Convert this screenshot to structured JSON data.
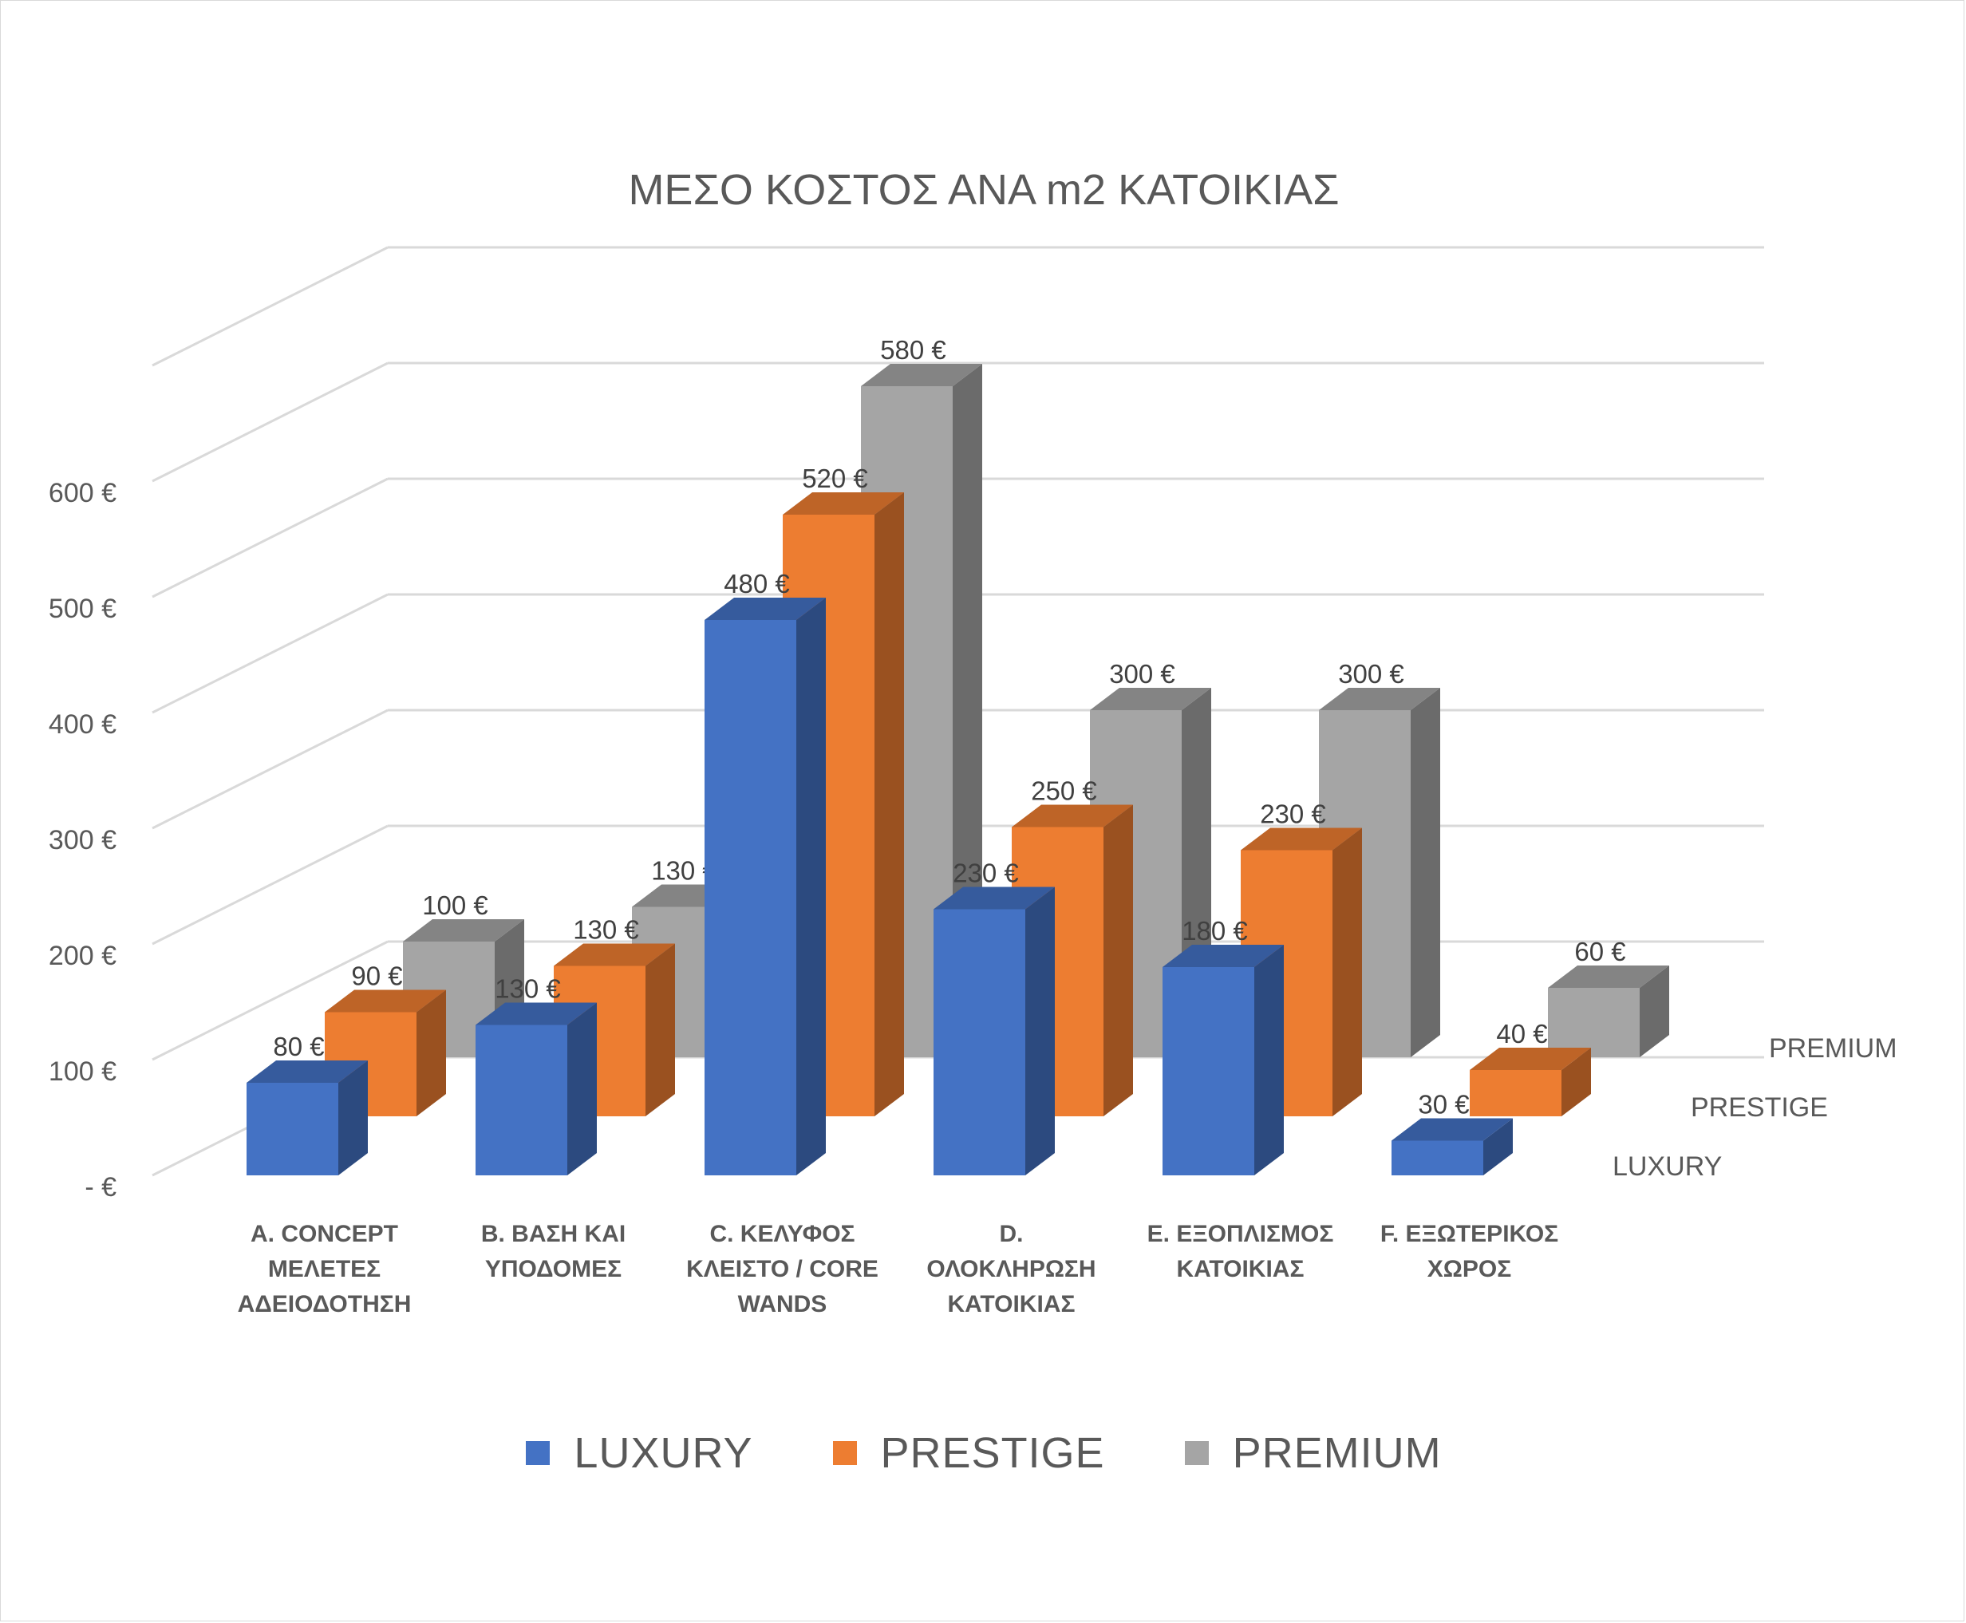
{
  "chart_data": {
    "type": "bar",
    "subtype": "3d-clustered-column",
    "title": "ΜΕΣΟ ΚΟΣΤΟΣ ΑΝΑ m2 ΚΑΤΟΙΚΙΑΣ",
    "categories": [
      [
        "A.  CONCEPT",
        "ΜΕΛΕΤΕΣ",
        "ΑΔΕΙΟΔΟΤΗΣΗ"
      ],
      [
        "B.  ΒΑΣΗ ΚΑΙ",
        "ΥΠΟΔΟΜΕΣ"
      ],
      [
        "C.  ΚΕΛΥΦΟΣ",
        "ΚΛΕΙΣΤΟ / CORE",
        "WANDS"
      ],
      [
        "D.",
        "ΟΛΟΚΛΗΡΩΣΗ",
        "ΚΑΤΟΙΚΙΑΣ"
      ],
      [
        "E.  ΕΞΟΠΛΙΣΜΟΣ",
        "ΚΑΤΟΙΚΙΑΣ"
      ],
      [
        "F.  ΕΞΩΤΕΡΙΚΟΣ",
        "ΧΩΡΟΣ"
      ]
    ],
    "series": [
      {
        "name": "LUXURY",
        "values": [
          80,
          130,
          480,
          230,
          180,
          30
        ],
        "labels": [
          "80 €",
          "130 €",
          "480 €",
          "230 €",
          "180 €",
          "30 €"
        ],
        "color": "#4472C4"
      },
      {
        "name": "PRESTIGE",
        "values": [
          90,
          130,
          520,
          250,
          230,
          40
        ],
        "labels": [
          "90 €",
          "130 €",
          "520 €",
          "250 €",
          "230 €",
          "40 €"
        ],
        "color": "#ED7D31"
      },
      {
        "name": "PREMIUM",
        "values": [
          100,
          130,
          580,
          300,
          300,
          60
        ],
        "labels": [
          "100 €",
          "130 €",
          "580 €",
          "300 €",
          "300 €",
          "60 €"
        ],
        "color": "#A5A5A5"
      }
    ],
    "yticks": [
      0,
      100,
      200,
      300,
      400,
      500,
      600
    ],
    "ytick_labels": [
      "-   €",
      "100 €",
      "200 €",
      "300 €",
      "400 €",
      "500 €",
      "600 €"
    ],
    "ylim": [
      0,
      700
    ],
    "depth_labels": [
      "LUXURY",
      "PRESTIGE",
      "PREMIUM"
    ],
    "legend_position": "bottom",
    "grid": true
  }
}
